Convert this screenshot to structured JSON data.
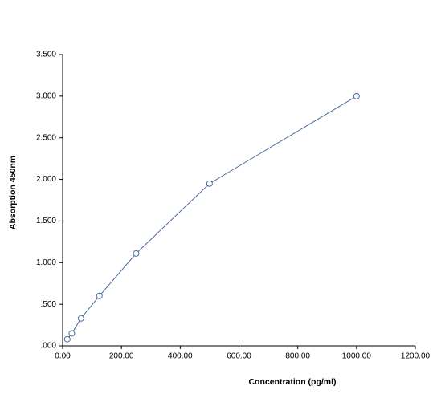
{
  "chart_data": {
    "type": "line",
    "x_label": "Concentration (pg/ml)",
    "y_label": "Absorption 450nm",
    "x": [
      15.63,
      31.25,
      62.5,
      125,
      250,
      500,
      1000
    ],
    "series": [
      {
        "color": "#4a6f9c",
        "values": [
          0.08,
          0.15,
          0.33,
          0.6,
          1.11,
          1.95,
          3.0
        ]
      }
    ],
    "xlim": [
      0,
      1200
    ],
    "xticks": [
      {
        "value": 0,
        "label": "0.00"
      },
      {
        "value": 200,
        "label": "200.00"
      },
      {
        "value": 400,
        "label": "400.00"
      },
      {
        "value": 600,
        "label": "600.00"
      },
      {
        "value": 800,
        "label": "800.00"
      },
      {
        "value": 1000,
        "label": "1000.00"
      },
      {
        "value": 1200,
        "label": "1200.00"
      }
    ],
    "ylim": [
      0,
      3.5
    ],
    "yticks": [
      {
        "value": 0,
        "label": ".000"
      },
      {
        "value": 0.5,
        "label": ".500"
      },
      {
        "value": 1,
        "label": "1.000"
      },
      {
        "value": 1.5,
        "label": "1.500"
      },
      {
        "value": 2,
        "label": "2.000"
      },
      {
        "value": 2.5,
        "label": "2.500"
      },
      {
        "value": 3,
        "label": "3.000"
      },
      {
        "value": 3.5,
        "label": "3.500"
      }
    ],
    "markers": "circle"
  }
}
